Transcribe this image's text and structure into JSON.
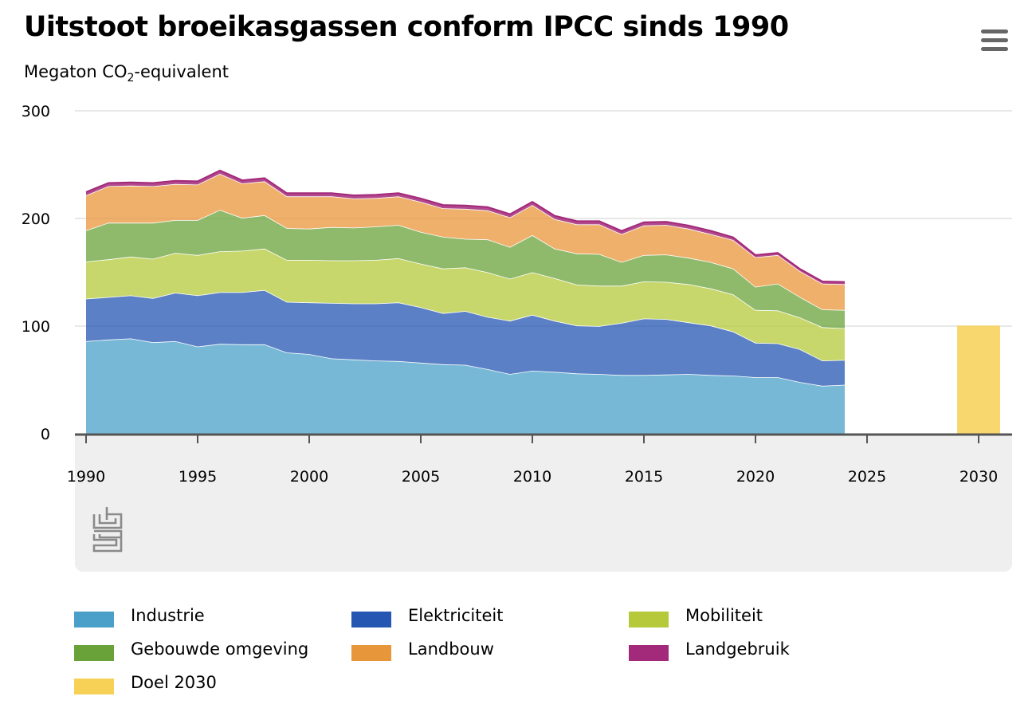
{
  "title": "Uitstoot broeikasgassen conform IPCC sinds 1990",
  "subtitle_prefix": "Megaton CO",
  "subtitle_sub": "2",
  "subtitle_suffix": "-equivalent",
  "menu_icon": "hamburger-menu-icon",
  "logo_icon": "cbs-logo",
  "chart_data": {
    "type": "area",
    "stacked": true,
    "x": [
      1990,
      1991,
      1992,
      1993,
      1994,
      1995,
      1996,
      1997,
      1998,
      1999,
      2000,
      2001,
      2002,
      2003,
      2004,
      2005,
      2006,
      2007,
      2008,
      2009,
      2010,
      2011,
      2012,
      2013,
      2014,
      2015,
      2016,
      2017,
      2018,
      2019,
      2020,
      2021,
      2022,
      2023,
      2024
    ],
    "xticks": [
      1990,
      1995,
      2000,
      2005,
      2010,
      2015,
      2020,
      2025,
      2030
    ],
    "xlim": [
      1989.5,
      2031.5
    ],
    "ylim": [
      0,
      300
    ],
    "yticks": [
      0,
      100,
      200,
      300
    ],
    "grid": true,
    "legend_position": "bottom",
    "series": [
      {
        "name": "Industrie",
        "color": "#4aa0c9",
        "values": [
          86,
          87.5,
          88.5,
          85,
          86,
          81,
          83.5,
          83,
          83,
          75.5,
          74,
          70,
          69,
          68,
          67.5,
          66,
          64.5,
          64,
          60,
          55.5,
          58.5,
          57.5,
          56,
          55.5,
          54.5,
          54.5,
          55,
          55.5,
          54.5,
          54,
          52.5,
          52.5,
          48,
          44.5,
          45.5
        ]
      },
      {
        "name": "Elektriciteit",
        "color": "#2456b2",
        "values": [
          39.5,
          39.5,
          40,
          41,
          45,
          47.5,
          48,
          48.5,
          50.5,
          47,
          48,
          51.5,
          52,
          53,
          54.5,
          51.5,
          47.5,
          50,
          48.5,
          49.5,
          52,
          47.5,
          44.5,
          44.5,
          48.5,
          52.5,
          51.5,
          48,
          46,
          41,
          32,
          31.5,
          30.5,
          23.5,
          23
        ]
      },
      {
        "name": "Mobiliteit",
        "color": "#b5c93b",
        "values": [
          34.5,
          35,
          36,
          36.5,
          37,
          37.5,
          38,
          38.5,
          38.5,
          39,
          39.5,
          39.5,
          40,
          40.5,
          41,
          40.5,
          41.5,
          40.5,
          41.5,
          39,
          39.5,
          39.5,
          38,
          37.5,
          34.5,
          34.5,
          34.5,
          35.5,
          34.5,
          34.5,
          30.5,
          30.5,
          29.5,
          31,
          29.5
        ]
      },
      {
        "name": "Gebouwde omgeving",
        "color": "#6aa23a",
        "values": [
          29,
          34,
          31.5,
          33.5,
          30.5,
          32.5,
          38.5,
          30.5,
          31,
          29.5,
          29,
          31,
          30.5,
          31,
          31,
          29.5,
          29.5,
          26.5,
          30.5,
          29.5,
          34.5,
          27.5,
          29,
          29.5,
          22,
          24.5,
          25.5,
          24.5,
          24.5,
          24,
          21.5,
          25,
          19,
          16.5,
          17
        ]
      },
      {
        "name": "Landbouw",
        "color": "#e8963a",
        "values": [
          32.5,
          34,
          34.5,
          34,
          33.5,
          33,
          33.5,
          32,
          31.5,
          29.5,
          30,
          28.5,
          27,
          26.5,
          26.5,
          28,
          26.5,
          28,
          27,
          27.5,
          28,
          27.5,
          27,
          27.5,
          26,
          27.5,
          27.5,
          27,
          26,
          26.5,
          27.5,
          26.5,
          24,
          24,
          24
        ]
      },
      {
        "name": "Landgebruik",
        "color": "#a3297a",
        "values": [
          3,
          3,
          3,
          3,
          3,
          3,
          3,
          3,
          3,
          3,
          3,
          3,
          3,
          3,
          3,
          3,
          3,
          3,
          3,
          3,
          3,
          3,
          3,
          3,
          3,
          3,
          3,
          3,
          3,
          2.5,
          2,
          2,
          2,
          2,
          2
        ]
      }
    ],
    "target": {
      "name": "Doel 2030",
      "color": "#f7d155",
      "x": 2030,
      "value": 100.5
    }
  },
  "legend": [
    {
      "label": "Industrie",
      "color": "#4aa0c9"
    },
    {
      "label": "Elektriciteit",
      "color": "#2456b2"
    },
    {
      "label": "Mobiliteit",
      "color": "#b5c93b"
    },
    {
      "label": "Gebouwde omgeving",
      "color": "#6aa23a"
    },
    {
      "label": "Landbouw",
      "color": "#e8963a"
    },
    {
      "label": "Landgebruik",
      "color": "#a3297a"
    },
    {
      "label": "Doel 2030",
      "color": "#f7d155"
    }
  ]
}
